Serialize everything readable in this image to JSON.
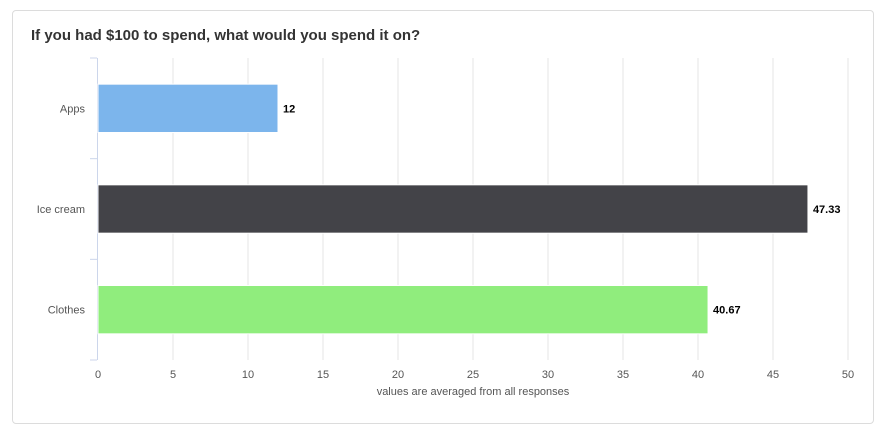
{
  "chart_data": {
    "type": "bar",
    "orientation": "horizontal",
    "title": "If you had $100 to spend, what would you spend it on?",
    "xlabel": "values are averaged from all responses",
    "ylabel": "",
    "categories": [
      "Apps",
      "Ice cream",
      "Clothes"
    ],
    "values": [
      12,
      47.33,
      40.67
    ],
    "value_labels": [
      "12",
      "47.33",
      "40.67"
    ],
    "colors": [
      "#7cb5ec",
      "#434348",
      "#90ed7d"
    ],
    "xlim": [
      0,
      50
    ],
    "ticks": [
      0,
      5,
      10,
      15,
      20,
      25,
      30,
      35,
      40,
      45,
      50
    ],
    "grid": true,
    "legend": "none"
  }
}
